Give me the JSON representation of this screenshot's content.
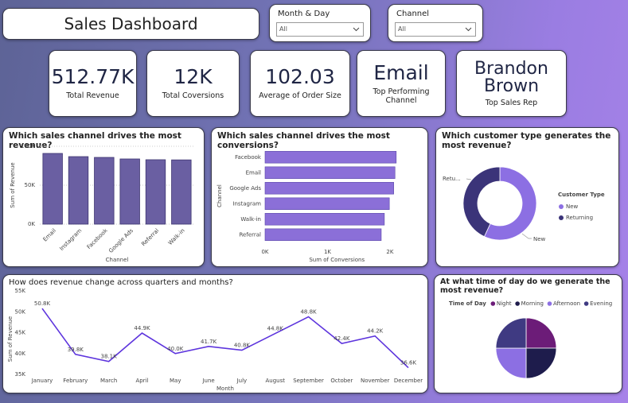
{
  "header": {
    "title": "Sales Dashboard"
  },
  "filters": [
    {
      "label": "Month & Day",
      "value": "All"
    },
    {
      "label": "Channel",
      "value": "All"
    }
  ],
  "kpis": [
    {
      "value": "512.77K",
      "label": "Total Revenue"
    },
    {
      "value": "12K",
      "label": "Total Coversions"
    },
    {
      "value": "102.03",
      "label": "Average of Order Size"
    },
    {
      "value": "Email",
      "label": "Top Performing Channel"
    },
    {
      "value": "Brandon Brown",
      "label": "Top Sales Rep"
    }
  ],
  "chart_data": [
    {
      "type": "bar",
      "orientation": "vertical",
      "title": "Which sales channel drives the most revenue?",
      "x_label": "Channel",
      "y_label": "Sum of Revenue",
      "categories": [
        "Email",
        "Instagram",
        "Facebook",
        "Google Ads",
        "Referral",
        "Walk-in"
      ],
      "values": [
        90800,
        86700,
        85700,
        83700,
        82700,
        82500
      ],
      "color": "#6a5fa2",
      "ylim": [
        0,
        100000
      ],
      "yticks": [
        {
          "value": 0,
          "label": "0K"
        },
        {
          "value": 50000,
          "label": "50K"
        },
        {
          "value": 100000,
          "label": "100K"
        }
      ],
      "grid": true
    },
    {
      "type": "bar",
      "orientation": "horizontal",
      "title": "Which sales channel drives the most conversions?",
      "x_label": "Sum of Conversions",
      "y_label": "Channel",
      "categories": [
        "Facebook",
        "Email",
        "Google Ads",
        "Instagram",
        "Walk-in",
        "Referral"
      ],
      "values": [
        2100,
        2080,
        2060,
        1990,
        1910,
        1860
      ],
      "color": "#8b6fd8",
      "xlim": [
        0,
        2300
      ],
      "xticks": [
        {
          "value": 0,
          "label": "0K"
        },
        {
          "value": 1000,
          "label": "1K"
        },
        {
          "value": 2000,
          "label": "2K"
        }
      ],
      "grid": false
    },
    {
      "type": "donut",
      "title": "Which customer type generates the most revenue?",
      "legend_title": "Customer Type",
      "categories": [
        "New",
        "Returning"
      ],
      "values": [
        57,
        43
      ],
      "colors": [
        "#8c6fe3",
        "#3b3479"
      ],
      "slice_labels": [
        "New",
        "Retu..."
      ]
    },
    {
      "type": "line",
      "title": "How does revenue change across quarters and months?",
      "x_label": "Month",
      "y_label": "Sum of Revenue",
      "categories": [
        "January",
        "February",
        "March",
        "April",
        "May",
        "June",
        "July",
        "August",
        "September",
        "October",
        "November",
        "December"
      ],
      "values": [
        50800,
        39800,
        38100,
        44900,
        40000,
        41700,
        40800,
        44800,
        48800,
        42400,
        44200,
        36600
      ],
      "value_labels": [
        "50.8K",
        "39.8K",
        "38.1K",
        "44.9K",
        "40.0K",
        "41.7K",
        "40.8K",
        "44.8K",
        "48.8K",
        "42.4K",
        "44.2K",
        "36.6K"
      ],
      "color": "#5d34dd",
      "ylim": [
        35000,
        55000
      ],
      "yticks": [
        {
          "value": 35000,
          "label": "35K"
        },
        {
          "value": 40000,
          "label": "40K"
        },
        {
          "value": 45000,
          "label": "45K"
        },
        {
          "value": 50000,
          "label": "50K"
        },
        {
          "value": 55000,
          "label": "55K"
        }
      ],
      "grid": false
    },
    {
      "type": "pie",
      "title": "At what time of day do we generate the most revenue?",
      "legend_title": "Time of Day",
      "categories": [
        "Night",
        "Morning",
        "Afternoon",
        "Evening"
      ],
      "values": [
        25,
        25,
        25,
        25
      ],
      "colors": [
        "#6c1c78",
        "#1e1c4c",
        "#8c6fe3",
        "#3f3a82"
      ]
    }
  ]
}
